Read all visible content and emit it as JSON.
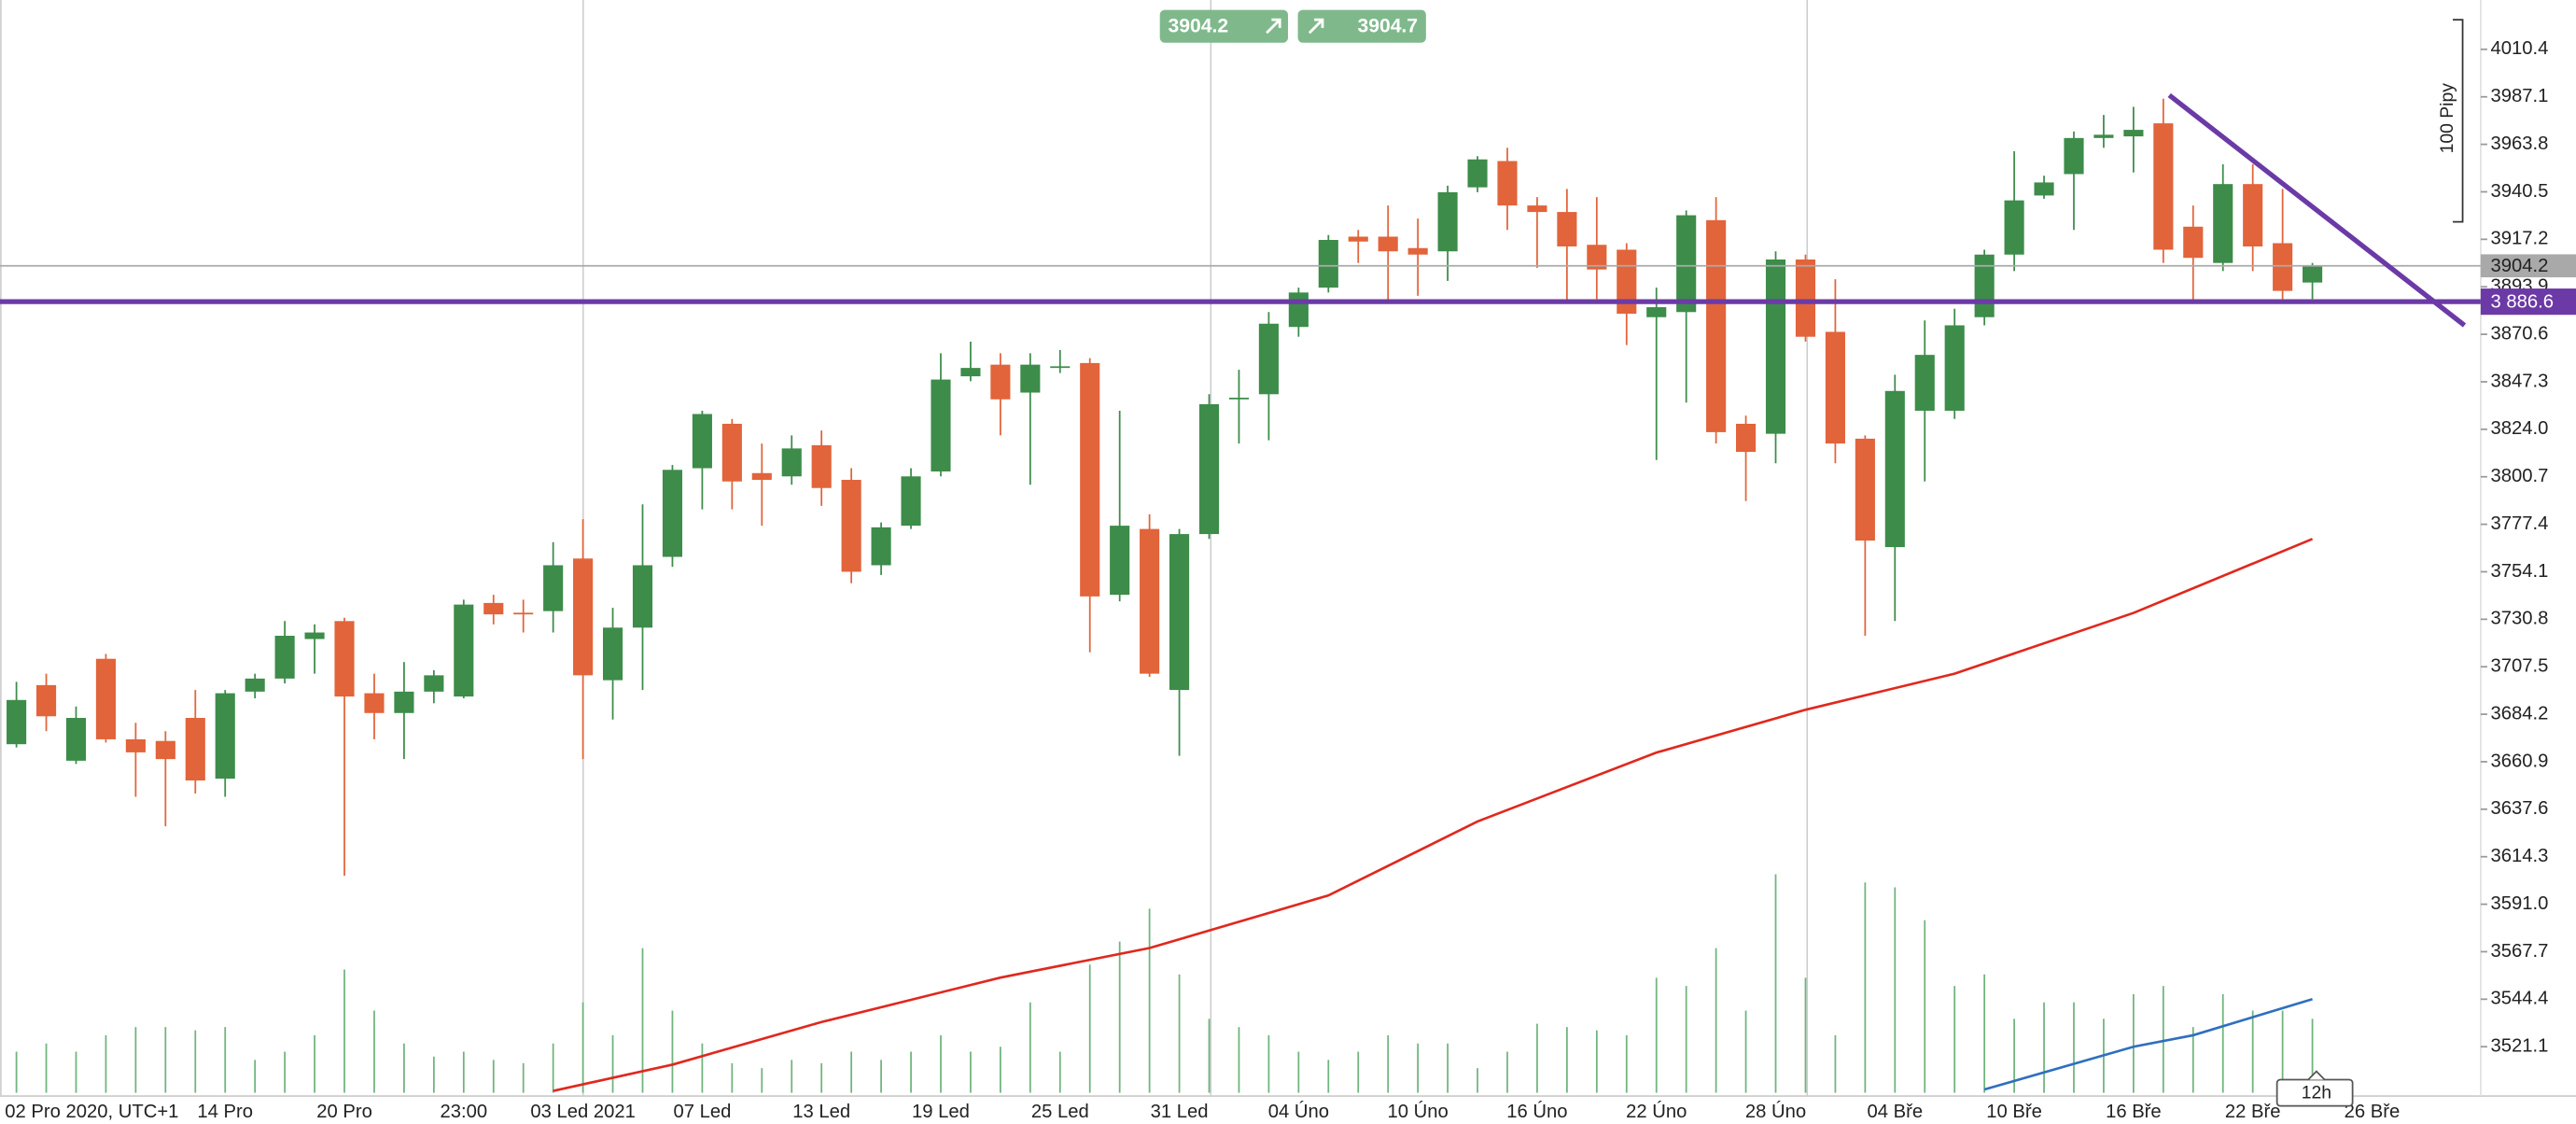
{
  "chart_data": {
    "type": "candlestick",
    "categories": [
      "02 Pro 2020, UTC+1",
      null,
      null,
      null,
      null,
      null,
      null,
      "14 Pro",
      null,
      null,
      null,
      "20 Pro",
      null,
      null,
      null,
      "23:00",
      null,
      null,
      null,
      "03 Led 2021",
      null,
      null,
      null,
      "07 Led",
      null,
      null,
      null,
      "13 Led",
      null,
      null,
      null,
      "19 Led",
      null,
      null,
      null,
      "25 Led",
      null,
      null,
      null,
      "31 Led",
      null,
      null,
      null,
      "04 Úno",
      null,
      null,
      null,
      "10 Úno",
      null,
      null,
      null,
      "16 Úno",
      null,
      null,
      null,
      "22 Úno",
      null,
      null,
      null,
      "28 Úno",
      null,
      null,
      null,
      "04 Bře",
      null,
      null,
      null,
      "10 Bře",
      null,
      null,
      null,
      "16 Bře",
      null,
      null,
      null,
      "22 Bře",
      null,
      null,
      null,
      "26 Bře"
    ],
    "open": [
      3669.5,
      3698.5,
      3661.4,
      3711.4,
      3671.9,
      3671.1,
      3682.4,
      3652.6,
      3695.3,
      3701.7,
      3721.1,
      3729.9,
      3694.5,
      3684.8,
      3695.3,
      3692.9,
      3738.8,
      3734.0,
      3734.8,
      3760.6,
      3700.9,
      3726.7,
      3761.4,
      3804.9,
      3826.7,
      3802.5,
      3800.9,
      3816.2,
      3799.2,
      3757.3,
      3776.7,
      3803.3,
      3850.0,
      3855.7,
      3842.0,
      3854.1,
      3856.5,
      3742.8,
      3775.1,
      3696.1,
      3772.6,
      3838.7,
      3841.2,
      3874.2,
      3893.5,
      3918.5,
      3918.5,
      3912.9,
      3911.3,
      3942.7,
      3955.6,
      3933.8,
      3930.6,
      3914.5,
      3912.1,
      3879.0,
      3881.5,
      3926.6,
      3826.7,
      3821.8,
      3907.3,
      3871.8,
      3819.4,
      3766.2,
      3833.1,
      3833.1,
      3879.0,
      3909.7,
      3938.7,
      3949.2,
      3966.9,
      3967.7,
      3974.1,
      3923.4,
      3905.6,
      3944.3,
      3915.3,
      3896.0,
      null,
      null
    ],
    "high": [
      3700.1,
      3704.1,
      3688.0,
      3713.8,
      3680.0,
      3675.9,
      3696.1,
      3696.1,
      3704.1,
      3729.9,
      3728.3,
      3731.5,
      3704.1,
      3709.8,
      3705.8,
      3740.4,
      3742.8,
      3740.4,
      3768.6,
      3779.9,
      3736.4,
      3787.2,
      3806.5,
      3833.1,
      3829.1,
      3817.0,
      3821.0,
      3823.4,
      3804.9,
      3778.3,
      3804.9,
      3861.3,
      3867.0,
      3861.3,
      3861.3,
      3862.9,
      3858.9,
      3833.1,
      3782.3,
      3775.1,
      3841.2,
      3853.2,
      3881.5,
      3893.5,
      3919.3,
      3921.8,
      3933.8,
      3927.4,
      3943.5,
      3958.0,
      3962.1,
      3937.9,
      3941.9,
      3937.9,
      3915.3,
      3893.5,
      3931.4,
      3937.9,
      3830.7,
      3911.3,
      3909.7,
      3897.6,
      3821.0,
      3850.8,
      3877.4,
      3883.1,
      3912.1,
      3960.4,
      3948.4,
      3970.1,
      3978.2,
      3982.2,
      3986.2,
      3933.8,
      3954.0,
      3954.0,
      3941.9,
      3905.6,
      null,
      null
    ],
    "low": [
      3667.9,
      3675.9,
      3659.8,
      3670.3,
      3643.7,
      3629.2,
      3645.3,
      3643.7,
      3692.0,
      3699.3,
      3704.1,
      3605.0,
      3671.9,
      3662.2,
      3689.6,
      3692.0,
      3728.3,
      3724.3,
      3724.3,
      3662.2,
      3681.6,
      3696.1,
      3756.5,
      3784.7,
      3784.7,
      3776.7,
      3796.8,
      3786.4,
      3748.5,
      3752.5,
      3775.1,
      3800.9,
      3847.6,
      3821.0,
      3796.8,
      3851.6,
      3714.6,
      3739.6,
      3702.5,
      3663.8,
      3770.2,
      3817.0,
      3818.6,
      3869.4,
      3891.1,
      3905.6,
      3887.1,
      3889.5,
      3896.8,
      3940.3,
      3921.8,
      3903.2,
      3887.1,
      3887.9,
      3865.3,
      3808.9,
      3837.1,
      3817.0,
      3788.8,
      3807.3,
      3867.0,
      3807.3,
      3722.7,
      3729.9,
      3798.4,
      3829.1,
      3875.0,
      3901.6,
      3937.1,
      3921.8,
      3962.1,
      3950.0,
      3905.6,
      3887.1,
      3901.6,
      3901.6,
      3887.9,
      3887.9,
      null,
      null
    ],
    "close": [
      3691.2,
      3683.2,
      3682.4,
      3671.9,
      3665.5,
      3662.2,
      3651.7,
      3694.5,
      3701.7,
      3722.7,
      3724.3,
      3692.9,
      3684.8,
      3695.3,
      3703.3,
      3738.0,
      3733.2,
      3733.2,
      3757.3,
      3703.3,
      3726.7,
      3757.3,
      3804.1,
      3831.5,
      3798.4,
      3799.2,
      3814.6,
      3795.2,
      3754.1,
      3775.9,
      3800.9,
      3848.4,
      3854.1,
      3838.7,
      3855.7,
      3854.9,
      3742.0,
      3776.7,
      3704.1,
      3772.6,
      3836.3,
      3839.5,
      3875.8,
      3891.1,
      3916.9,
      3916.1,
      3911.3,
      3909.7,
      3940.3,
      3956.4,
      3933.8,
      3930.6,
      3913.7,
      3902.4,
      3880.7,
      3883.9,
      3929.0,
      3822.6,
      3812.9,
      3907.3,
      3869.4,
      3817.0,
      3769.4,
      3842.8,
      3860.5,
      3875.0,
      3909.7,
      3936.3,
      3945.1,
      3966.9,
      3968.5,
      3970.9,
      3912.1,
      3908.1,
      3944.3,
      3913.7,
      3891.9,
      3904.0,
      null,
      null
    ],
    "up_color": "#3d8c4a",
    "down_color": "#e2643a",
    "volume": [
      25,
      30,
      25,
      35,
      40,
      40,
      38,
      40,
      20,
      25,
      35,
      75,
      50,
      30,
      22,
      25,
      20,
      18,
      30,
      55,
      35,
      88,
      50,
      30,
      18,
      15,
      20,
      18,
      25,
      20,
      25,
      35,
      25,
      28,
      55,
      25,
      78,
      92,
      112,
      72,
      45,
      40,
      35,
      25,
      20,
      25,
      35,
      30,
      30,
      15,
      25,
      42,
      40,
      38,
      35,
      70,
      65,
      88,
      50,
      133,
      70,
      35,
      128,
      125,
      105,
      65,
      72,
      45,
      55,
      55,
      45,
      60,
      65,
      40,
      60,
      50,
      50,
      45,
      null,
      null
    ],
    "volume_lim": [
      0,
      140
    ],
    "volume_color": "#6fb47c",
    "volume_ma": {
      "x": [
        66,
        71,
        73,
        77
      ],
      "values": [
        2,
        28,
        35,
        57
      ],
      "color": "#2f6fc0"
    },
    "moving_average": {
      "x": [
        18,
        22,
        27,
        33,
        38,
        44,
        49,
        55,
        60,
        65,
        71,
        77
      ],
      "values": [
        3499.4,
        3512.3,
        3533.2,
        3555.0,
        3569.5,
        3595.3,
        3631.6,
        3665.4,
        3686.4,
        3704.1,
        3733.9,
        3770.2
      ],
      "color": "#e0281e"
    },
    "ylim": [
      3498.5,
      4034.6
    ],
    "yticks": [
      4010.4,
      3987.1,
      3963.8,
      3940.5,
      3917.2,
      3893.9,
      3870.6,
      3847.3,
      {
        "value": 3824,
        "label": "3824.0"
      },
      3800.7,
      3777.4,
      3754.1,
      3730.8,
      3707.5,
      3684.2,
      3660.9,
      3637.6,
      3614.3,
      {
        "value": 3591,
        "label": "3591.0"
      },
      3567.7,
      3544.4,
      3521.1
    ],
    "last_price": 3904.2,
    "level": {
      "value": 3886.6,
      "label": "3 886.6",
      "color": "#6b3aa6"
    },
    "trendline": {
      "x": [
        72.2,
        82.1
      ],
      "values": [
        3987.9,
        3875.0
      ],
      "color": "#6b3aa6"
    },
    "sell_price": 3904.2,
    "buy_price": 3904.7,
    "range_label": "100 Pipy",
    "timeframe": "12h"
  }
}
